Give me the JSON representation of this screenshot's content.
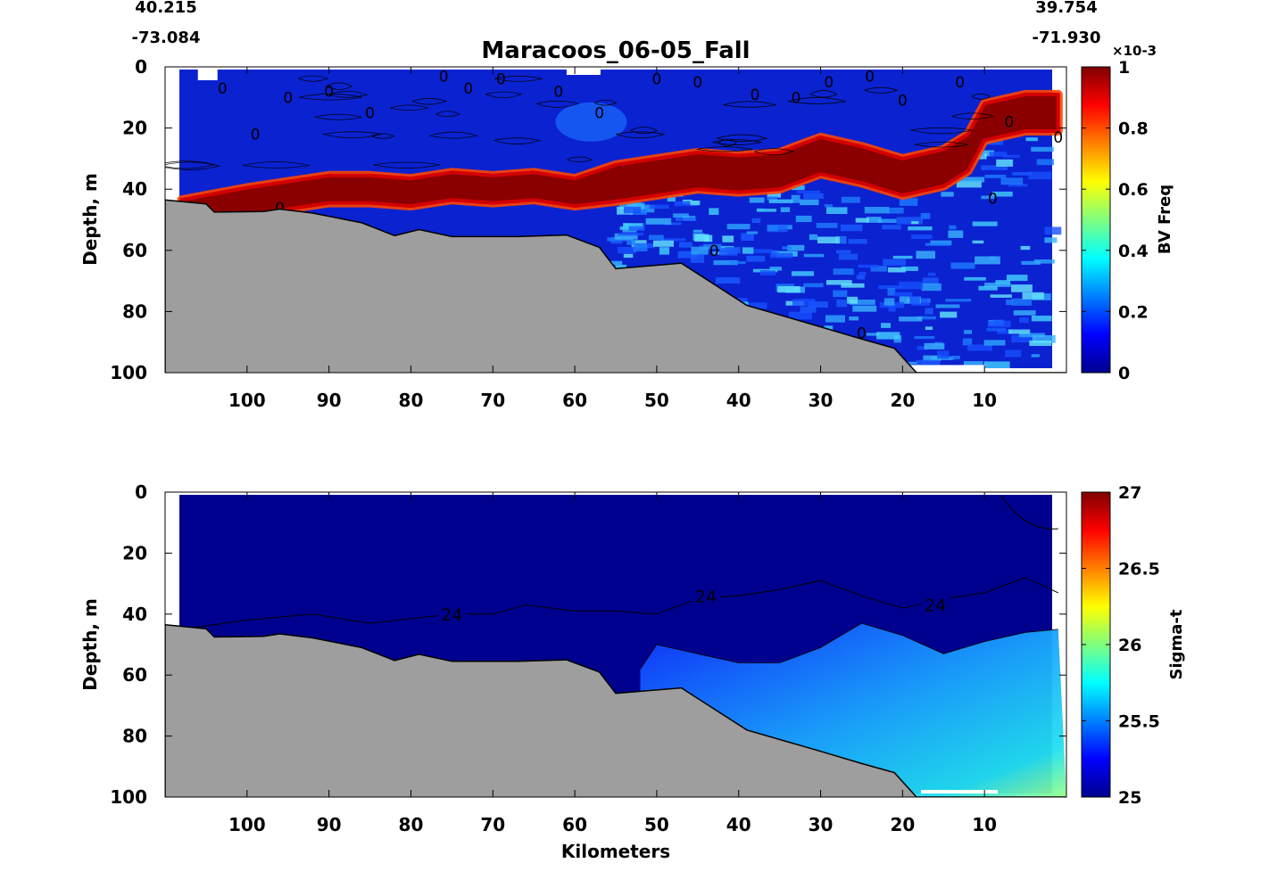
{
  "header": {
    "start_lat": "40.215",
    "start_lon": "-73.084",
    "end_lat": "39.754",
    "end_lon": "-71.930"
  },
  "chart_data": [
    {
      "type": "heatmap",
      "title": "Maracoos_06-05_Fall",
      "xlabel": "",
      "ylabel": "Depth, m",
      "x_reversed": true,
      "xlim": [
        110,
        0
      ],
      "ylim": [
        0,
        100
      ],
      "y_reversed": true,
      "x_ticks": [
        100,
        90,
        80,
        70,
        60,
        50,
        40,
        30,
        20,
        10
      ],
      "y_ticks": [
        0,
        20,
        40,
        60,
        80,
        100
      ],
      "colormap": "jet",
      "colorbar": {
        "label": "BV Freq",
        "multiplier": "×10-3",
        "range": [
          0,
          1
        ],
        "ticks": [
          "0",
          "0.2",
          "0.4",
          "0.6",
          "0.8",
          "1"
        ]
      },
      "contour_labels": [
        "0"
      ],
      "high_layer": [
        [
          108,
          48
        ],
        [
          100,
          44
        ],
        [
          95,
          42
        ],
        [
          90,
          40
        ],
        [
          85,
          40
        ],
        [
          80,
          41
        ],
        [
          75,
          39
        ],
        [
          70,
          40
        ],
        [
          65,
          39
        ],
        [
          60,
          41
        ],
        [
          55,
          38
        ],
        [
          50,
          36
        ],
        [
          45,
          34
        ],
        [
          40,
          35
        ],
        [
          35,
          34
        ],
        [
          30,
          29
        ],
        [
          25,
          32
        ],
        [
          20,
          36
        ],
        [
          15,
          33
        ],
        [
          12,
          28
        ],
        [
          10,
          18
        ],
        [
          5,
          15
        ],
        [
          1,
          15
        ]
      ],
      "bathymetry": [
        [
          110,
          43.5
        ],
        [
          105,
          44.8
        ],
        [
          104,
          47.5
        ],
        [
          98,
          47.3
        ],
        [
          96,
          46.5
        ],
        [
          92,
          47.8
        ],
        [
          86,
          51
        ],
        [
          82,
          55.2
        ],
        [
          79,
          53.2
        ],
        [
          75,
          55.5
        ],
        [
          67,
          55.5
        ],
        [
          61,
          55
        ],
        [
          57,
          59
        ],
        [
          55,
          66
        ],
        [
          47,
          64.2
        ],
        [
          39,
          78
        ],
        [
          30,
          85
        ],
        [
          25,
          89
        ],
        [
          21,
          92
        ],
        [
          18.3,
          100
        ],
        [
          0,
          100
        ]
      ]
    },
    {
      "type": "heatmap",
      "title": "",
      "xlabel": "Kilometers",
      "ylabel": "Depth, m",
      "x_reversed": true,
      "xlim": [
        110,
        0
      ],
      "ylim": [
        0,
        100
      ],
      "y_reversed": true,
      "x_ticks": [
        100,
        90,
        80,
        70,
        60,
        50,
        40,
        30,
        20,
        10
      ],
      "y_ticks": [
        0,
        20,
        40,
        60,
        80,
        100
      ],
      "colormap": "jet",
      "colorbar": {
        "label": "Sigma-t",
        "range": [
          25,
          27
        ],
        "ticks": [
          "25",
          "25.5",
          "26",
          "26.5",
          "27"
        ]
      },
      "contour_level": 24,
      "contour_labels": [
        "24",
        "24",
        "24"
      ],
      "contour_24_depth": [
        [
          108,
          45
        ],
        [
          100,
          42
        ],
        [
          92,
          40
        ],
        [
          85,
          43
        ],
        [
          75,
          40
        ],
        [
          70,
          40
        ],
        [
          66,
          37
        ],
        [
          60,
          39
        ],
        [
          55,
          39
        ],
        [
          50,
          40
        ],
        [
          45,
          35
        ],
        [
          40,
          34
        ],
        [
          35,
          32
        ],
        [
          30,
          29
        ],
        [
          25,
          34
        ],
        [
          20,
          38
        ],
        [
          15,
          35
        ],
        [
          10,
          33
        ],
        [
          5,
          28
        ],
        [
          1,
          33
        ]
      ],
      "dense_water_top": [
        [
          52,
          58
        ],
        [
          50,
          50
        ],
        [
          45,
          53
        ],
        [
          40,
          56
        ],
        [
          35,
          56
        ],
        [
          30,
          51
        ],
        [
          25,
          43
        ],
        [
          20,
          47
        ],
        [
          15,
          53
        ],
        [
          10,
          49
        ],
        [
          5,
          46
        ],
        [
          1,
          45
        ]
      ],
      "bathymetry": [
        [
          110,
          43.5
        ],
        [
          105,
          44.8
        ],
        [
          104,
          47.5
        ],
        [
          98,
          47.3
        ],
        [
          96,
          46.5
        ],
        [
          92,
          47.8
        ],
        [
          86,
          51
        ],
        [
          82,
          55.2
        ],
        [
          79,
          53.2
        ],
        [
          75,
          55.5
        ],
        [
          67,
          55.5
        ],
        [
          61,
          55
        ],
        [
          57,
          59
        ],
        [
          55,
          66
        ],
        [
          47,
          64.2
        ],
        [
          39,
          78
        ],
        [
          30,
          85
        ],
        [
          25,
          89
        ],
        [
          21,
          92
        ],
        [
          18.3,
          100
        ],
        [
          0,
          100
        ]
      ]
    }
  ]
}
